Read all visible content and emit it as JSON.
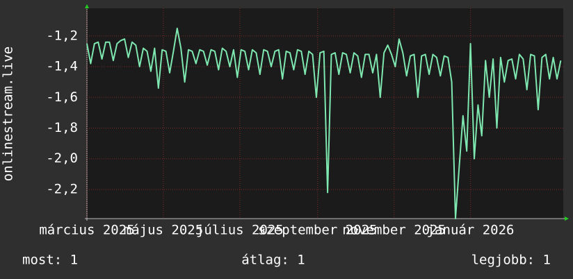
{
  "chart_data": {
    "type": "line",
    "y_label": "onlinestream.live",
    "series": [
      {
        "color": "#7ee8b0",
        "x": [
          0,
          3,
          6,
          9,
          12,
          15,
          18,
          21,
          24,
          27,
          30,
          33,
          36,
          39,
          42,
          45,
          48,
          51,
          54,
          57,
          60,
          63,
          66,
          69,
          72,
          75,
          78,
          81,
          84,
          87,
          90,
          93,
          96,
          99,
          102,
          105,
          108,
          111,
          114,
          117,
          120,
          123,
          126,
          129,
          132,
          135,
          138,
          141,
          144,
          147,
          150,
          153,
          156,
          159,
          162,
          165,
          168,
          171,
          174,
          177,
          180,
          183,
          186,
          189,
          192,
          195,
          198,
          201,
          204,
          207,
          210,
          213,
          216,
          219,
          222,
          225,
          228,
          231,
          234,
          237,
          240,
          243,
          246,
          249,
          252,
          255,
          258,
          261,
          264,
          267,
          270,
          273,
          276,
          279,
          282,
          285,
          288,
          291,
          294,
          297,
          300,
          303,
          306,
          309,
          312,
          315,
          318,
          321,
          324,
          327,
          330,
          333,
          336,
          339,
          342,
          345,
          348,
          351,
          354,
          357,
          360,
          363,
          366,
          369,
          372,
          375,
          378
        ],
        "values": [
          -1.25,
          -1.38,
          -1.25,
          -1.24,
          -1.35,
          -1.24,
          -1.24,
          -1.36,
          -1.25,
          -1.23,
          -1.22,
          -1.34,
          -1.24,
          -1.26,
          -1.4,
          -1.28,
          -1.3,
          -1.43,
          -1.28,
          -1.54,
          -1.29,
          -1.3,
          -1.44,
          -1.3,
          -1.15,
          -1.28,
          -1.5,
          -1.29,
          -1.3,
          -1.38,
          -1.29,
          -1.3,
          -1.39,
          -1.29,
          -1.3,
          -1.42,
          -1.28,
          -1.3,
          -1.4,
          -1.29,
          -1.47,
          -1.29,
          -1.3,
          -1.42,
          -1.29,
          -1.31,
          -1.45,
          -1.29,
          -1.3,
          -1.4,
          -1.3,
          -1.29,
          -1.48,
          -1.3,
          -1.31,
          -1.42,
          -1.29,
          -1.3,
          -1.45,
          -1.3,
          -1.32,
          -1.6,
          -1.31,
          -1.3,
          -2.22,
          -1.32,
          -1.31,
          -1.45,
          -1.31,
          -1.32,
          -1.44,
          -1.31,
          -1.33,
          -1.47,
          -1.32,
          -1.32,
          -1.44,
          -1.32,
          -1.6,
          -1.31,
          -1.26,
          -1.32,
          -1.4,
          -1.22,
          -1.31,
          -1.46,
          -1.33,
          -1.32,
          -1.6,
          -1.33,
          -1.32,
          -1.45,
          -1.32,
          -1.34,
          -1.46,
          -1.33,
          -1.34,
          -1.5,
          -2.39,
          -2.05,
          -1.72,
          -1.95,
          -1.25,
          -2.0,
          -1.65,
          -1.85,
          -1.36,
          -1.6,
          -1.35,
          -1.8,
          -1.34,
          -1.5,
          -1.36,
          -1.35,
          -1.48,
          -1.32,
          -1.35,
          -1.55,
          -1.32,
          -1.33,
          -1.68,
          -1.34,
          -1.32,
          -1.48,
          -1.34,
          -1.48,
          -1.36
        ]
      }
    ],
    "xlim": [
      0,
      380
    ],
    "xticks": [
      {
        "value": 0,
        "label": "március 2025"
      },
      {
        "value": 61,
        "label": "május 2025"
      },
      {
        "value": 122,
        "label": "július 2025"
      },
      {
        "value": 184,
        "label": "szeptember 2025"
      },
      {
        "value": 245,
        "label": "november 2025"
      },
      {
        "value": 306,
        "label": "január 2026"
      }
    ],
    "ylim": [
      -2.39,
      -1.02
    ],
    "yticks": [
      {
        "value": -1.2,
        "label": "-1,2"
      },
      {
        "value": -1.4,
        "label": "-1,4"
      },
      {
        "value": -1.6,
        "label": "-1,6"
      },
      {
        "value": -1.8,
        "label": "-1,8"
      },
      {
        "value": -2.0,
        "label": "-2,0"
      },
      {
        "value": -2.2,
        "label": "-2,2"
      }
    ],
    "grid": true,
    "stats": [
      "most: 1",
      "átlag: 1",
      "legjobb: 1"
    ]
  }
}
